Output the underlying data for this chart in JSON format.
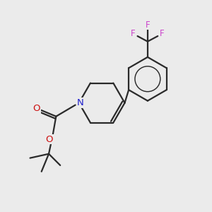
{
  "bg_color": "#ebebeb",
  "bond_color": "#2a2a2a",
  "bond_width": 1.6,
  "N_color": "#2020cc",
  "O_color": "#cc1111",
  "F_color": "#cc44cc",
  "figsize": [
    3.0,
    3.0
  ],
  "dpi": 100,
  "xlim": [
    0,
    10
  ],
  "ylim": [
    0,
    10
  ]
}
